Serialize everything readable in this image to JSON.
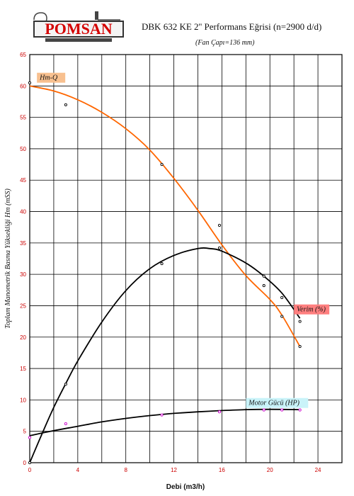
{
  "header": {
    "logo_text": "POMSAN",
    "title": "DBK 632 KE 2'' Performans Eğrisi  (n=2900 d/d)",
    "subtitle": "(Fan Çapı=136 mm)"
  },
  "chart_data": {
    "type": "line",
    "xlabel": "Debi (m3/h)",
    "ylabel": "Toplam Manometrik Basma Yüksekliği Hm (mSS)",
    "xlim": [
      0,
      26
    ],
    "ylim": [
      0,
      65
    ],
    "xticks": [
      0,
      4,
      8,
      12,
      16,
      20,
      24
    ],
    "yticks": [
      0,
      5,
      10,
      15,
      20,
      25,
      30,
      35,
      40,
      45,
      50,
      55,
      60,
      65
    ],
    "grid": true,
    "series": [
      {
        "name": "Hm-Q",
        "color": "#ff6600",
        "points": [
          [
            0,
            60.5
          ],
          [
            3,
            57
          ],
          [
            11,
            47.5
          ],
          [
            15.8,
            37.8
          ],
          [
            19.5,
            28.2
          ],
          [
            21,
            23.3
          ],
          [
            22.5,
            18.5
          ]
        ],
        "curve": [
          [
            0,
            60
          ],
          [
            2,
            59.2
          ],
          [
            4,
            57.8
          ],
          [
            6,
            55.8
          ],
          [
            8,
            53.2
          ],
          [
            10,
            49.8
          ],
          [
            12,
            45.3
          ],
          [
            14,
            40.2
          ],
          [
            16,
            34.7
          ],
          [
            18,
            29.8
          ],
          [
            20,
            26
          ],
          [
            21,
            23.5
          ],
          [
            22.5,
            18.5
          ]
        ]
      },
      {
        "name": "Verim (%)",
        "color": "#000000",
        "points": [
          [
            0,
            0
          ],
          [
            3,
            12.5
          ],
          [
            11,
            31.7
          ],
          [
            15.8,
            34.2
          ],
          [
            19.5,
            29.7
          ],
          [
            21,
            26.3
          ],
          [
            22.5,
            22.5
          ]
        ],
        "curve": [
          [
            0,
            0
          ],
          [
            1,
            4.5
          ],
          [
            2,
            8.8
          ],
          [
            3,
            12.6
          ],
          [
            4,
            16.2
          ],
          [
            6,
            22.4
          ],
          [
            8,
            27.4
          ],
          [
            10,
            30.9
          ],
          [
            12,
            33
          ],
          [
            14,
            34.1
          ],
          [
            15,
            34.1
          ],
          [
            16,
            33.7
          ],
          [
            18,
            31.8
          ],
          [
            19.5,
            29.7
          ],
          [
            21,
            27
          ],
          [
            22.5,
            23
          ]
        ]
      },
      {
        "name": "Motor Gücü (HP)",
        "color": "#000000",
        "points": [
          [
            0,
            4
          ],
          [
            3,
            6.2
          ],
          [
            11,
            7.6
          ],
          [
            15.8,
            8.1
          ],
          [
            19.5,
            8.4
          ],
          [
            21,
            8.4
          ],
          [
            22.5,
            8.4
          ]
        ],
        "curve": [
          [
            0,
            4.3
          ],
          [
            2,
            5.1
          ],
          [
            4,
            5.8
          ],
          [
            6,
            6.5
          ],
          [
            8,
            7.05
          ],
          [
            10,
            7.5
          ],
          [
            12,
            7.85
          ],
          [
            14,
            8.1
          ],
          [
            16,
            8.3
          ],
          [
            18,
            8.45
          ],
          [
            20,
            8.5
          ],
          [
            22.5,
            8.45
          ]
        ]
      }
    ],
    "labels": {
      "hm": "Hm-Q",
      "verim": "Verim (%)",
      "motor": "Motor Gücü (HP)"
    },
    "label_colors": {
      "hm": "#f8c08f",
      "verim": "#ff7f7f",
      "motor": "#c9f3f9"
    },
    "point_colors": {
      "hm": "#000000",
      "verim": "#000000",
      "motor": "#cc00cc"
    }
  }
}
